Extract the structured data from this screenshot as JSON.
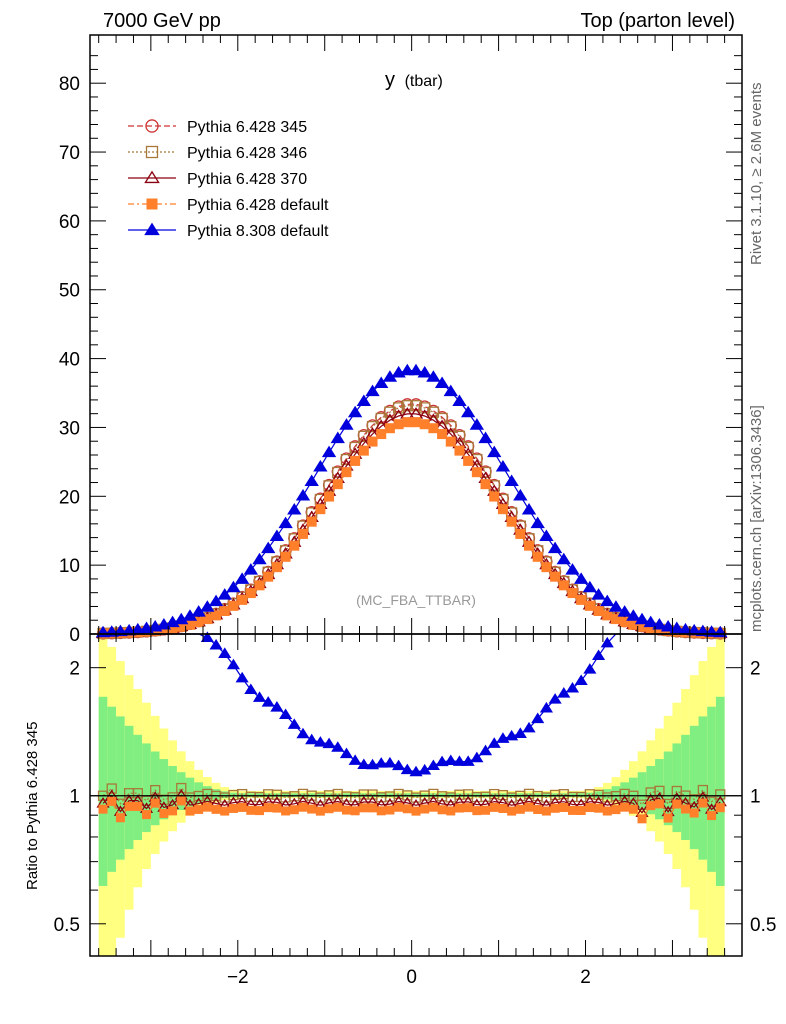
{
  "header": {
    "left": "7000 GeV pp",
    "right": "Top (parton level)"
  },
  "side_text": {
    "top": "Rivet 3.1.10, ≥ 2.6M events",
    "bottom": "mcplots.cern.ch [arXiv:1306.3436]"
  },
  "colors": {
    "p345": "#cc3333",
    "p346": "#a8783a",
    "p370": "#8b0010",
    "p6def": "#ff7f2a",
    "p8def": "#0000dd",
    "band_yellow": "#ffff80",
    "band_green": "#80ee80"
  },
  "chart_data": [
    {
      "type": "line",
      "panel": "main",
      "title": "y (tbar)",
      "title_main": "y",
      "title_sub": "(tbar)",
      "watermark": "(MC_FBA_TTBAR)",
      "xlabel": "",
      "ylabel": "",
      "xlim": [
        -3.7,
        3.8
      ],
      "ylim": [
        0,
        87
      ],
      "yticks": [
        0,
        10,
        20,
        30,
        40,
        50,
        60,
        70,
        80
      ],
      "ytick_labels": [
        "0",
        "10",
        "20",
        "30",
        "40",
        "50",
        "60",
        "70",
        "80"
      ],
      "bin_range": [
        -3.6,
        3.6
      ],
      "n_bins": 72,
      "legend_position": "top-left",
      "series": [
        {
          "key": "p345",
          "name": "Pythia 6.428 345",
          "marker": "circle-open",
          "dash": "6,3",
          "peak": 33.4,
          "sigma": 1.02
        },
        {
          "key": "p346",
          "name": "Pythia 6.428 346",
          "marker": "square-open",
          "dash": "2,2",
          "peak": 33.2,
          "sigma": 1.02
        },
        {
          "key": "p370",
          "name": "Pythia 6.428 370",
          "marker": "triangle-open",
          "dash": "",
          "peak": 32.0,
          "sigma": 1.02
        },
        {
          "key": "p6def",
          "name": "Pythia 6.428 default",
          "marker": "square-filled",
          "dash": "6,3,2,3",
          "peak": 30.8,
          "sigma": 1.02
        },
        {
          "key": "p8def",
          "name": "Pythia 8.308 default",
          "marker": "triangle-filled",
          "dash": "",
          "peak": 38.3,
          "sigma": 1.1
        }
      ]
    },
    {
      "type": "line",
      "panel": "ratio",
      "ylabel": "Ratio to Pythia 6.428 345",
      "xlim": [
        -3.7,
        3.8
      ],
      "ylim": [
        0.42,
        2.4
      ],
      "yscale": "log",
      "yticks": [
        0.5,
        1,
        2
      ],
      "ytick_labels": [
        "0.5",
        "1",
        "2"
      ],
      "xticks": [
        -2,
        0,
        2
      ],
      "xtick_labels": [
        "−2",
        "0",
        "2"
      ],
      "reference_line": 1,
      "series": [
        {
          "key": "p346",
          "name": "Pythia 6.428 346",
          "ratio_center": 1.0
        },
        {
          "key": "p370",
          "name": "Pythia 6.428 370",
          "ratio_center": 0.96
        },
        {
          "key": "p6def",
          "name": "Pythia 6.428 default",
          "ratio_center": 0.93
        },
        {
          "key": "p8def",
          "name": "Pythia 8.308 default",
          "ratio_center": 1.16
        }
      ]
    }
  ]
}
